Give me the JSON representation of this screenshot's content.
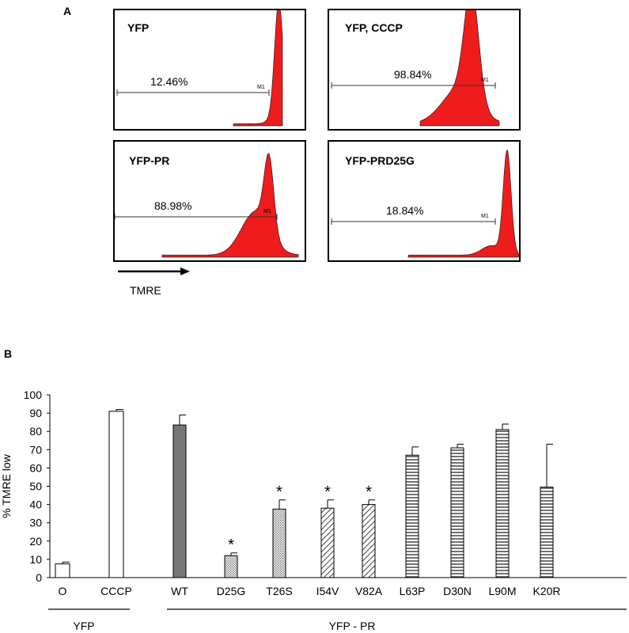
{
  "panel_a": {
    "letter": "A",
    "histograms": [
      {
        "title": "YFP",
        "percent": "12.46%",
        "marker": "M1"
      },
      {
        "title": "YFP, CCCP",
        "percent": "98.84%",
        "marker": "M1"
      },
      {
        "title": "YFP-PR",
        "percent": "88.98%",
        "marker": "M1"
      },
      {
        "title": "YFP-PRD25G",
        "percent": "18.84%",
        "marker": "M1"
      }
    ],
    "axis_label": "TMRE"
  },
  "panel_b": {
    "letter": "B"
  },
  "chart_data": {
    "type": "bar",
    "ylabel": "% TMRE low",
    "ylim": [
      0,
      100
    ],
    "yticks": [
      "0",
      "10",
      "20",
      "30",
      "40",
      "50",
      "60",
      "70",
      "80",
      "90",
      "100"
    ],
    "categories": [
      "O",
      "CCCP",
      "WT",
      "D25G",
      "T26S",
      "I54V",
      "V82A",
      "L63P",
      "D30N",
      "L90M",
      "K20R"
    ],
    "values": [
      7.5,
      91,
      83.5,
      12,
      37.5,
      38,
      40,
      67,
      71,
      81,
      49.5
    ],
    "errors": [
      1,
      1,
      5.5,
      1.5,
      5,
      4.5,
      2.5,
      4.5,
      2,
      3,
      23.5
    ],
    "fills": [
      "white",
      "white",
      "dark-gray",
      "dotted",
      "dotted",
      "diagonal",
      "diagonal",
      "horizontal",
      "horizontal",
      "horizontal",
      "horizontal"
    ],
    "significance": [
      "",
      "",
      "",
      "*",
      "*",
      "*",
      "*",
      "",
      "",
      "",
      ""
    ],
    "groups": [
      {
        "label": "YFP",
        "span": [
          "O",
          "CCCP"
        ]
      },
      {
        "label": "YFP - PR",
        "span": [
          "WT",
          "K20R"
        ]
      }
    ]
  }
}
